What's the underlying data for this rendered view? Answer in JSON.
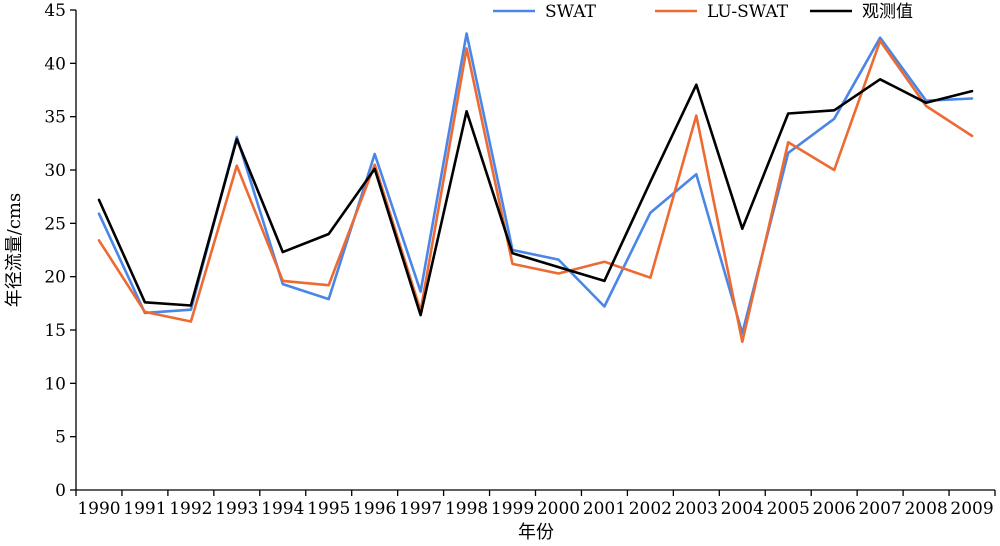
{
  "chart_data": {
    "type": "line",
    "title": "",
    "xlabel": "年份",
    "ylabel": "年径流量/cms",
    "ylim": [
      0,
      45
    ],
    "yticks": [
      0,
      5,
      10,
      15,
      20,
      25,
      30,
      35,
      40,
      45
    ],
    "grid": false,
    "legend_position": "top-right",
    "categories": [
      "1990",
      "1991",
      "1992",
      "1993",
      "1994",
      "1995",
      "1996",
      "1997",
      "1998",
      "1999",
      "2000",
      "2001",
      "2002",
      "2003",
      "2004",
      "2005",
      "2006",
      "2007",
      "2008",
      "2009"
    ],
    "series": [
      {
        "name": "SWAT",
        "color": "#4a86e8",
        "values": [
          25.9,
          16.6,
          16.9,
          33.1,
          19.3,
          17.9,
          31.5,
          18.6,
          42.8,
          22.5,
          21.6,
          17.2,
          26.0,
          29.6,
          14.7,
          31.6,
          34.8,
          42.4,
          36.5,
          36.7
        ]
      },
      {
        "name": "LU-SWAT",
        "color": "#ed6a32",
        "values": [
          23.4,
          16.7,
          15.8,
          30.4,
          19.6,
          19.2,
          30.5,
          16.8,
          41.4,
          21.2,
          20.3,
          21.4,
          19.9,
          35.1,
          13.9,
          32.6,
          30.0,
          42.1,
          36.0,
          33.2
        ]
      },
      {
        "name": "观测值",
        "color": "#000000",
        "values": [
          27.2,
          17.6,
          17.3,
          32.9,
          22.3,
          24.0,
          30.1,
          16.4,
          35.5,
          22.2,
          20.9,
          19.6,
          28.9,
          38.0,
          24.5,
          35.3,
          35.6,
          38.5,
          36.3,
          37.4
        ]
      }
    ]
  }
}
